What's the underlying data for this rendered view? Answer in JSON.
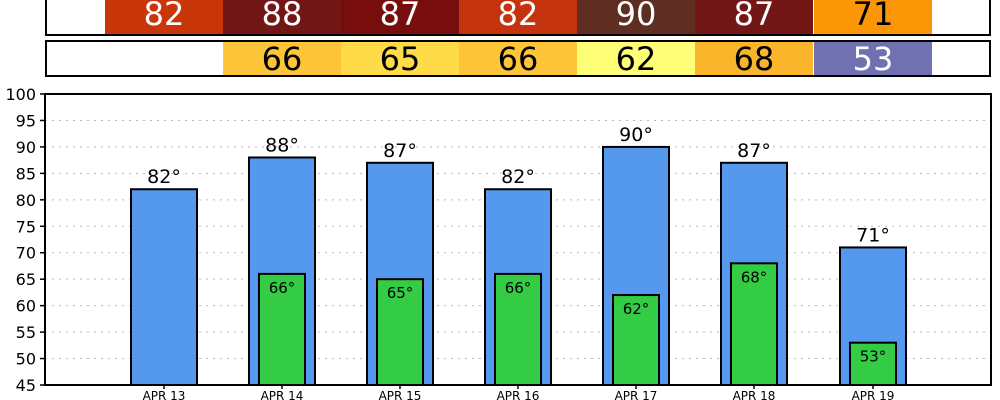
{
  "colors": {
    "high_bar": "#5599ee",
    "low_bar": "#33cc44",
    "grid": "#bbbbbb"
  },
  "degree_symbol": "°",
  "high_strip": [
    {
      "value": "82",
      "color": "#c8360a",
      "text_color": "#ffffff"
    },
    {
      "value": "88",
      "color": "#721616",
      "text_color": "#ffffff"
    },
    {
      "value": "87",
      "color": "#780d0d",
      "text_color": "#ffffff"
    },
    {
      "value": "82",
      "color": "#c4330d",
      "text_color": "#ffffff"
    },
    {
      "value": "90",
      "color": "#5e2e22",
      "text_color": "#ffffff"
    },
    {
      "value": "87",
      "color": "#721616",
      "text_color": "#ffffff"
    },
    {
      "value": "71",
      "color": "#fb9707",
      "text_color": "#000000"
    }
  ],
  "low_strip": [
    {
      "value": "66",
      "color": "#fec539",
      "text_color": "#000000"
    },
    {
      "value": "65",
      "color": "#ffdb4a",
      "text_color": "#000000"
    },
    {
      "value": "66",
      "color": "#fec539",
      "text_color": "#000000"
    },
    {
      "value": "62",
      "color": "#ffff77",
      "text_color": "#000000"
    },
    {
      "value": "68",
      "color": "#fbb52a",
      "text_color": "#000000"
    },
    {
      "value": "53",
      "color": "#7171b2",
      "text_color": "#ffffff"
    }
  ],
  "chart_data": {
    "type": "bar",
    "categories": [
      "APR 13",
      "APR 14",
      "APR 15",
      "APR 16",
      "APR 17",
      "APR 18",
      "APR 19"
    ],
    "series": [
      {
        "values": [
          82,
          88,
          87,
          82,
          90,
          87,
          71
        ]
      },
      {
        "values": [
          null,
          66,
          65,
          66,
          62,
          68,
          53
        ]
      }
    ],
    "ylim": [
      45,
      100
    ],
    "yticks": [
      45,
      50,
      55,
      60,
      65,
      70,
      75,
      80,
      85,
      90,
      95,
      100
    ],
    "grid": true
  }
}
